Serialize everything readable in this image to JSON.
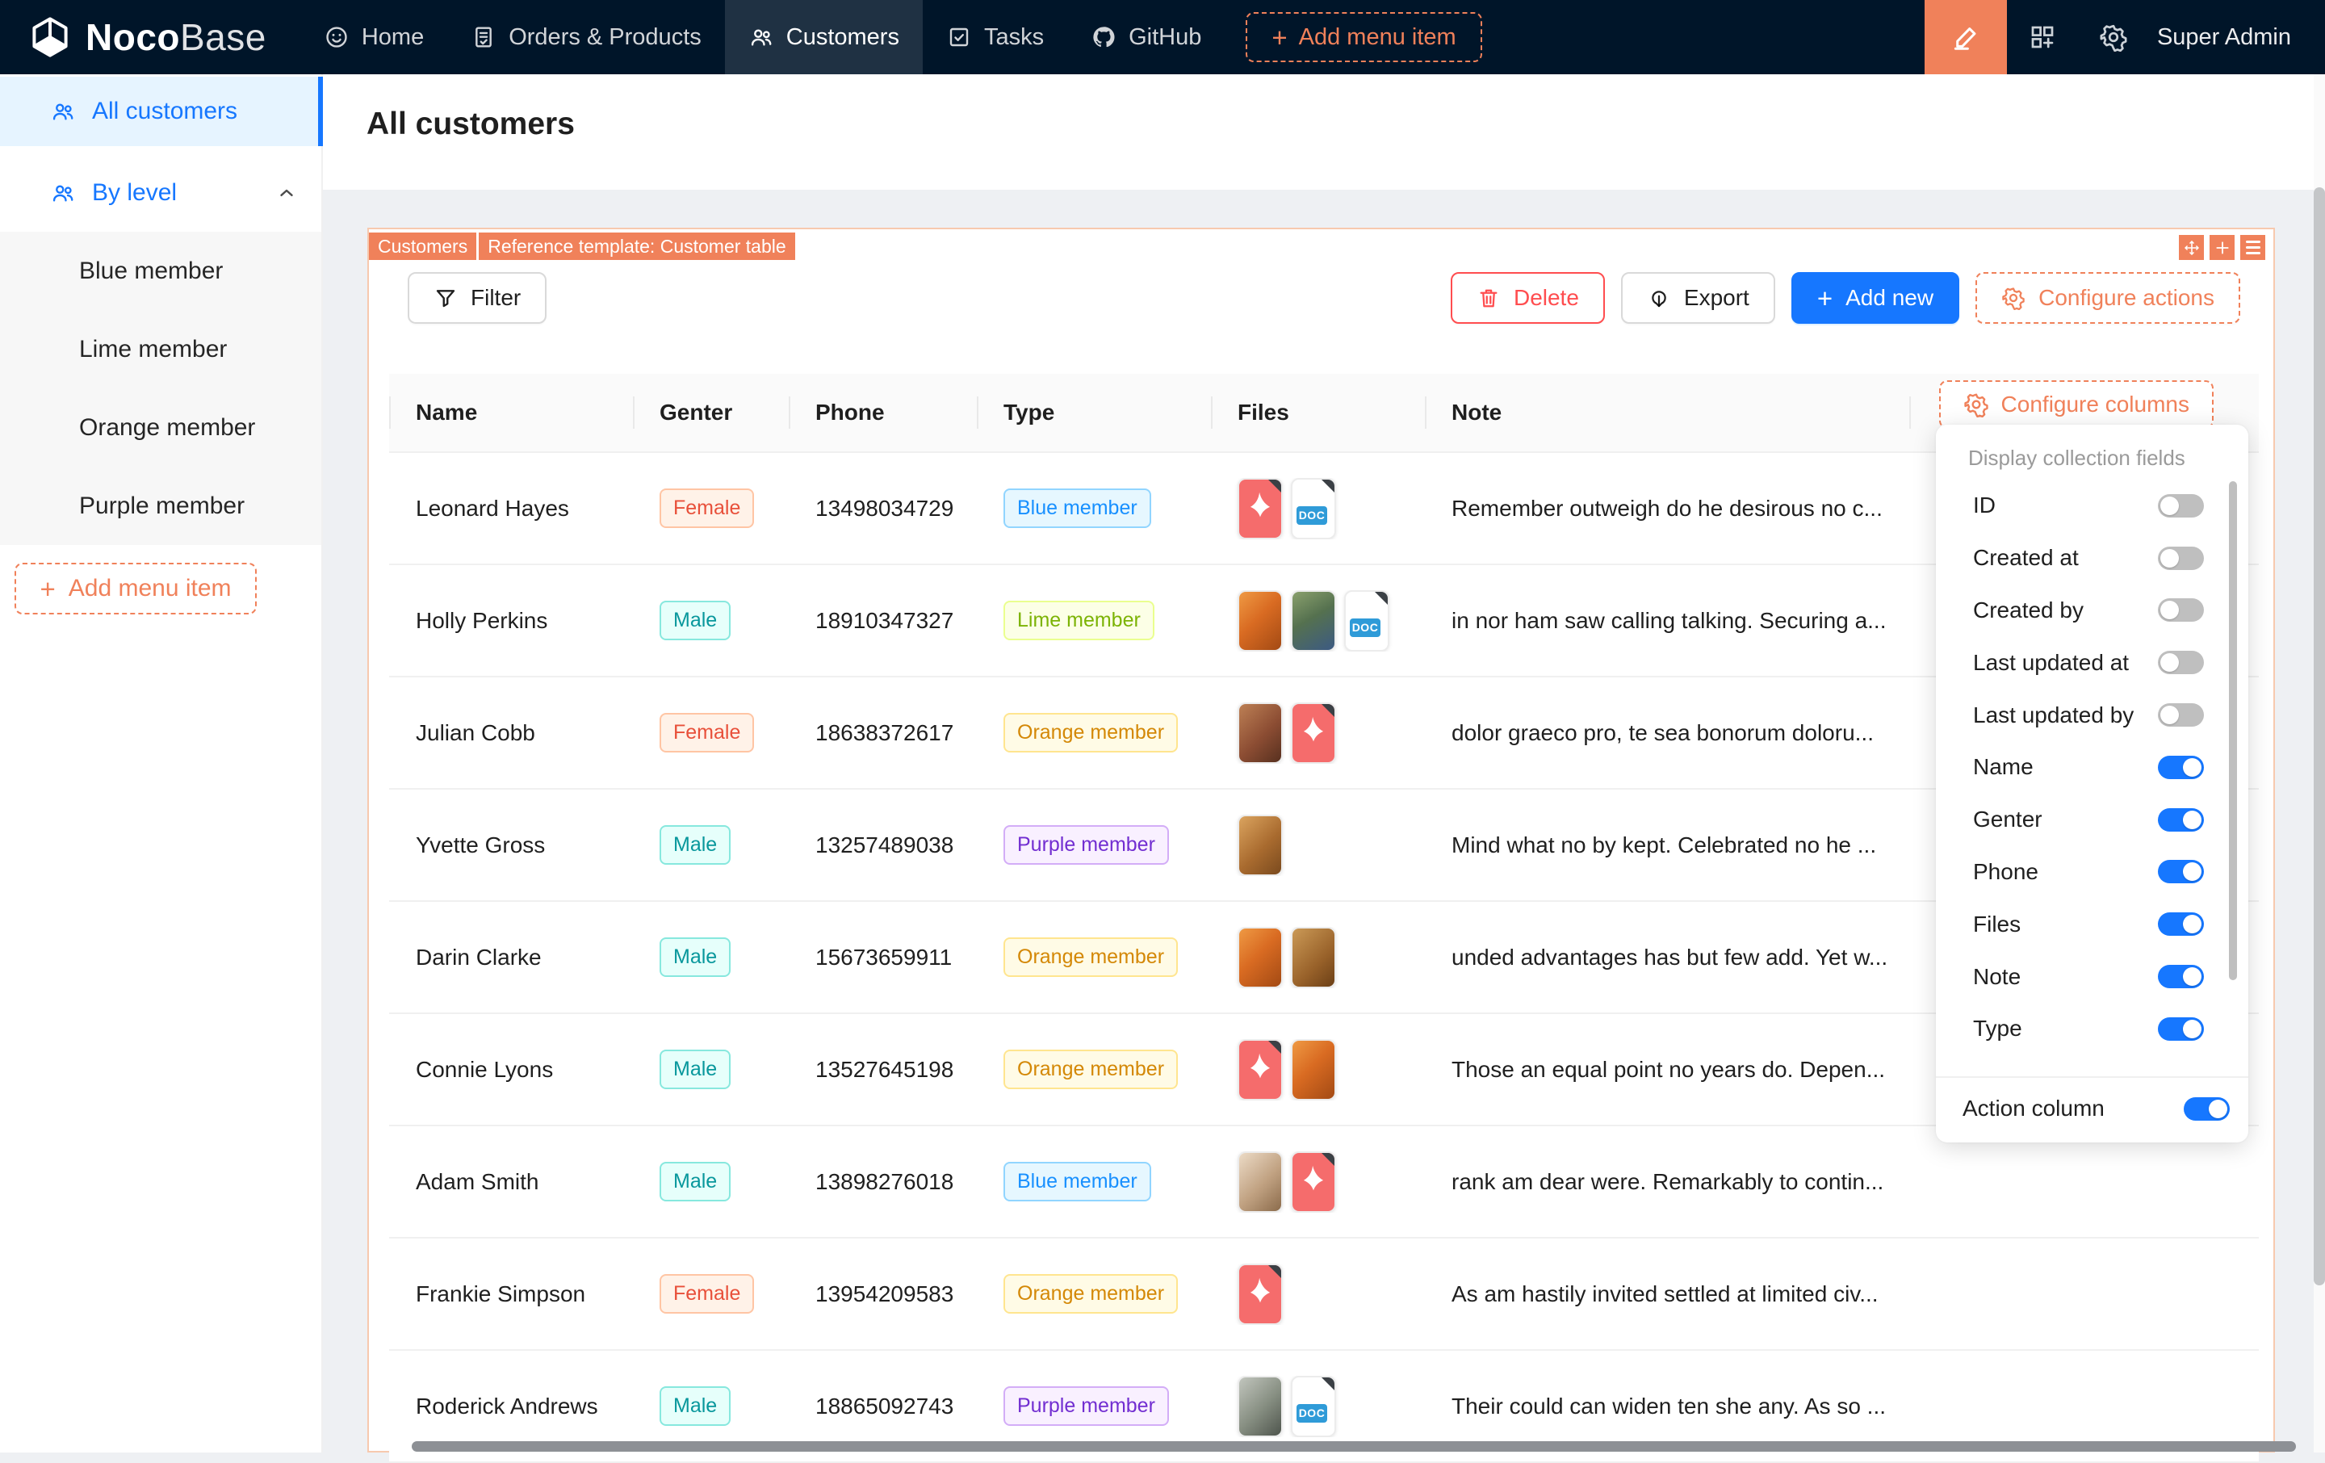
{
  "colors": {
    "navbar_bg": "#001529",
    "accent_orange": "#F0815A",
    "primary_blue": "#1677FF",
    "danger_red": "#FF4D4F",
    "card_border": "#F7C9AE",
    "page_bg": "#EEF0F3",
    "toggle_on": "#1677FF"
  },
  "navbar": {
    "logo_primary": "Noco",
    "logo_secondary": "Base",
    "items": [
      {
        "label": "Home",
        "icon": "smile-icon",
        "active": false
      },
      {
        "label": "Orders & Products",
        "icon": "file-done-icon",
        "active": false
      },
      {
        "label": "Customers",
        "icon": "team-icon",
        "active": true
      },
      {
        "label": "Tasks",
        "icon": "check-square-icon",
        "active": false
      },
      {
        "label": "GitHub",
        "icon": "github-icon",
        "active": false
      }
    ],
    "add_menu_item_label": "Add menu item",
    "right_icons": [
      "highlighter-icon",
      "appstore-add-icon",
      "gear-icon"
    ],
    "user": "Super Admin"
  },
  "sidebar": {
    "items": [
      {
        "label": "All customers",
        "icon": "team-icon",
        "active": true
      },
      {
        "label": "By level",
        "icon": "team-icon",
        "expanded": true,
        "children": [
          {
            "label": "Blue member"
          },
          {
            "label": "Lime member"
          },
          {
            "label": "Orange member"
          },
          {
            "label": "Purple member"
          }
        ]
      }
    ],
    "add_menu_item_label": "Add menu item"
  },
  "page": {
    "title": "All customers"
  },
  "block": {
    "design_tags": [
      "Customers",
      "Reference template: Customer table"
    ],
    "toolbar": {
      "filter_label": "Filter",
      "delete_label": "Delete",
      "export_label": "Export",
      "add_new_label": "Add new",
      "configure_actions_label": "Configure actions"
    },
    "table": {
      "columns": [
        "Name",
        "Genter",
        "Phone",
        "Type",
        "Files",
        "Note"
      ],
      "configure_columns_label": "Configure columns",
      "rows": [
        {
          "name": "Leonard Hayes",
          "gender": {
            "label": "Female",
            "color": "volcano"
          },
          "phone": "13498034729",
          "type": {
            "label": "Blue member",
            "color": "blue"
          },
          "files": [
            {
              "kind": "pdf"
            },
            {
              "kind": "doc"
            }
          ],
          "note": "Remember outweigh do he desirous no c..."
        },
        {
          "name": "Holly Perkins",
          "gender": {
            "label": "Male",
            "color": "cyan"
          },
          "phone": "18910347327",
          "type": {
            "label": "Lime member",
            "color": "lime"
          },
          "files": [
            {
              "kind": "image",
              "look": "oranges"
            },
            {
              "kind": "image",
              "look": "garden"
            },
            {
              "kind": "doc"
            }
          ],
          "note": "in nor ham saw calling talking. Securing a..."
        },
        {
          "name": "Julian Cobb",
          "gender": {
            "label": "Female",
            "color": "volcano"
          },
          "phone": "18638372617",
          "type": {
            "label": "Orange member",
            "color": "gold"
          },
          "files": [
            {
              "kind": "image",
              "look": "food"
            },
            {
              "kind": "pdf"
            }
          ],
          "note": "dolor graeco pro, te sea bonorum doloru..."
        },
        {
          "name": "Yvette Gross",
          "gender": {
            "label": "Male",
            "color": "cyan"
          },
          "phone": "13257489038",
          "type": {
            "label": "Purple member",
            "color": "purple"
          },
          "files": [
            {
              "kind": "image",
              "look": "cookies"
            }
          ],
          "note": "Mind what no by kept. Celebrated no he ..."
        },
        {
          "name": "Darin Clarke",
          "gender": {
            "label": "Male",
            "color": "cyan"
          },
          "phone": "15673659911",
          "type": {
            "label": "Orange member",
            "color": "gold"
          },
          "files": [
            {
              "kind": "image",
              "look": "oranges"
            },
            {
              "kind": "image",
              "look": "snack"
            }
          ],
          "note": "unded advantages has but few add. Yet w..."
        },
        {
          "name": "Connie Lyons",
          "gender": {
            "label": "Male",
            "color": "cyan"
          },
          "phone": "13527645198",
          "type": {
            "label": "Orange member",
            "color": "gold"
          },
          "files": [
            {
              "kind": "pdf"
            },
            {
              "kind": "image",
              "look": "oranges"
            }
          ],
          "note": "Those an equal point no years do. Depen..."
        },
        {
          "name": "Adam Smith",
          "gender": {
            "label": "Male",
            "color": "cyan"
          },
          "phone": "13898276018",
          "type": {
            "label": "Blue member",
            "color": "blue"
          },
          "files": [
            {
              "kind": "image",
              "look": "coffee"
            },
            {
              "kind": "pdf"
            }
          ],
          "note": "rank am dear were. Remarkably to contin..."
        },
        {
          "name": "Frankie Simpson",
          "gender": {
            "label": "Female",
            "color": "volcano"
          },
          "phone": "13954209583",
          "type": {
            "label": "Orange member",
            "color": "gold"
          },
          "files": [
            {
              "kind": "pdf"
            }
          ],
          "note": "As am hastily invited settled at limited civ..."
        },
        {
          "name": "Roderick Andrews",
          "gender": {
            "label": "Male",
            "color": "cyan"
          },
          "phone": "18865092743",
          "type": {
            "label": "Purple member",
            "color": "purple"
          },
          "files": [
            {
              "kind": "image",
              "look": "shop"
            },
            {
              "kind": "doc"
            }
          ],
          "note": "Their could can widen ten she any. As so ..."
        }
      ]
    }
  },
  "dropdown": {
    "title": "Display collection fields",
    "fields": [
      {
        "label": "ID",
        "on": false
      },
      {
        "label": "Created at",
        "on": false
      },
      {
        "label": "Created by",
        "on": false
      },
      {
        "label": "Last updated at",
        "on": false
      },
      {
        "label": "Last updated by",
        "on": false
      },
      {
        "label": "Name",
        "on": true
      },
      {
        "label": "Genter",
        "on": true
      },
      {
        "label": "Phone",
        "on": true
      },
      {
        "label": "Files",
        "on": true
      },
      {
        "label": "Note",
        "on": true
      },
      {
        "label": "Type",
        "on": true
      }
    ],
    "action_column": {
      "label": "Action column",
      "on": true
    }
  }
}
